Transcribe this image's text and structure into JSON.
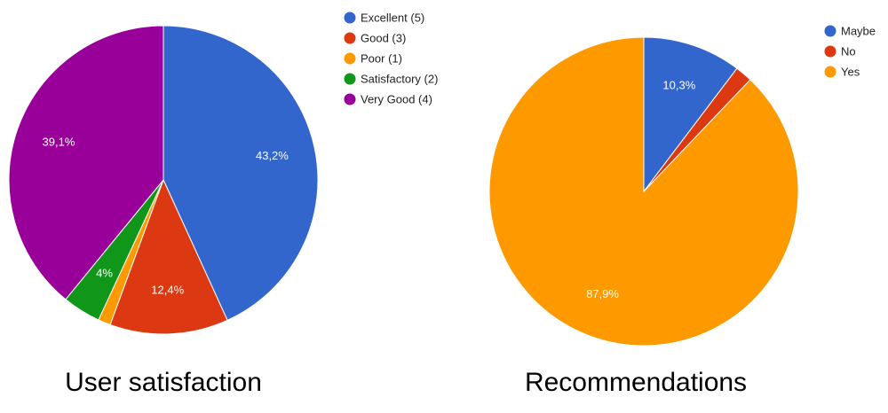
{
  "chart_data": [
    {
      "type": "pie",
      "title": "User satisfaction",
      "categories": [
        "Excellent (5)",
        "Good (3)",
        "Poor (1)",
        "Satisfactory (2)",
        "Very Good (4)"
      ],
      "values": [
        43.2,
        12.4,
        1.3,
        4,
        39.1
      ],
      "value_labels": [
        "43,2%",
        "12,4%",
        null,
        "4%",
        "39,1%"
      ],
      "colors": [
        "#3366cc",
        "#dc3912",
        "#ff9900",
        "#109618",
        "#990099"
      ]
    },
    {
      "type": "pie",
      "title": "Recommendations",
      "categories": [
        "Maybe",
        "No",
        "Yes"
      ],
      "values": [
        10.3,
        1.8,
        87.9
      ],
      "value_labels": [
        "10,3%",
        null,
        "87,9%"
      ],
      "colors": [
        "#3366cc",
        "#dc3912",
        "#ff9900"
      ]
    }
  ]
}
